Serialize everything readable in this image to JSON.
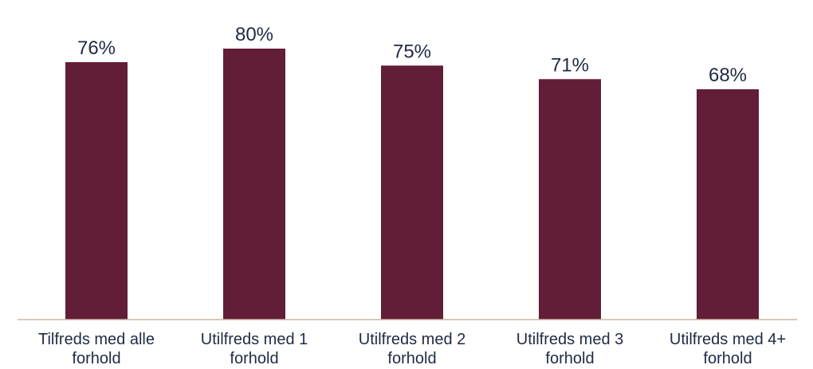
{
  "chart_data": {
    "type": "bar",
    "categories": [
      [
        "Tilfreds med alle",
        "forhold"
      ],
      [
        "Utilfreds med 1",
        "forhold"
      ],
      [
        "Utilfreds med 2",
        "forhold"
      ],
      [
        "Utilfreds med 3",
        "forhold"
      ],
      [
        "Utilfreds med 4+",
        "forhold"
      ]
    ],
    "values": [
      76,
      80,
      75,
      71,
      68
    ],
    "data_labels": [
      "76%",
      "80%",
      "75%",
      "71%",
      "68%"
    ],
    "title": "",
    "xlabel": "",
    "ylabel": "",
    "ylim": [
      0,
      82
    ],
    "grid": false,
    "legend": "none",
    "bar_color": "#621d38",
    "axis_color": "#c9b79c",
    "text_color": "#1f2a44"
  }
}
